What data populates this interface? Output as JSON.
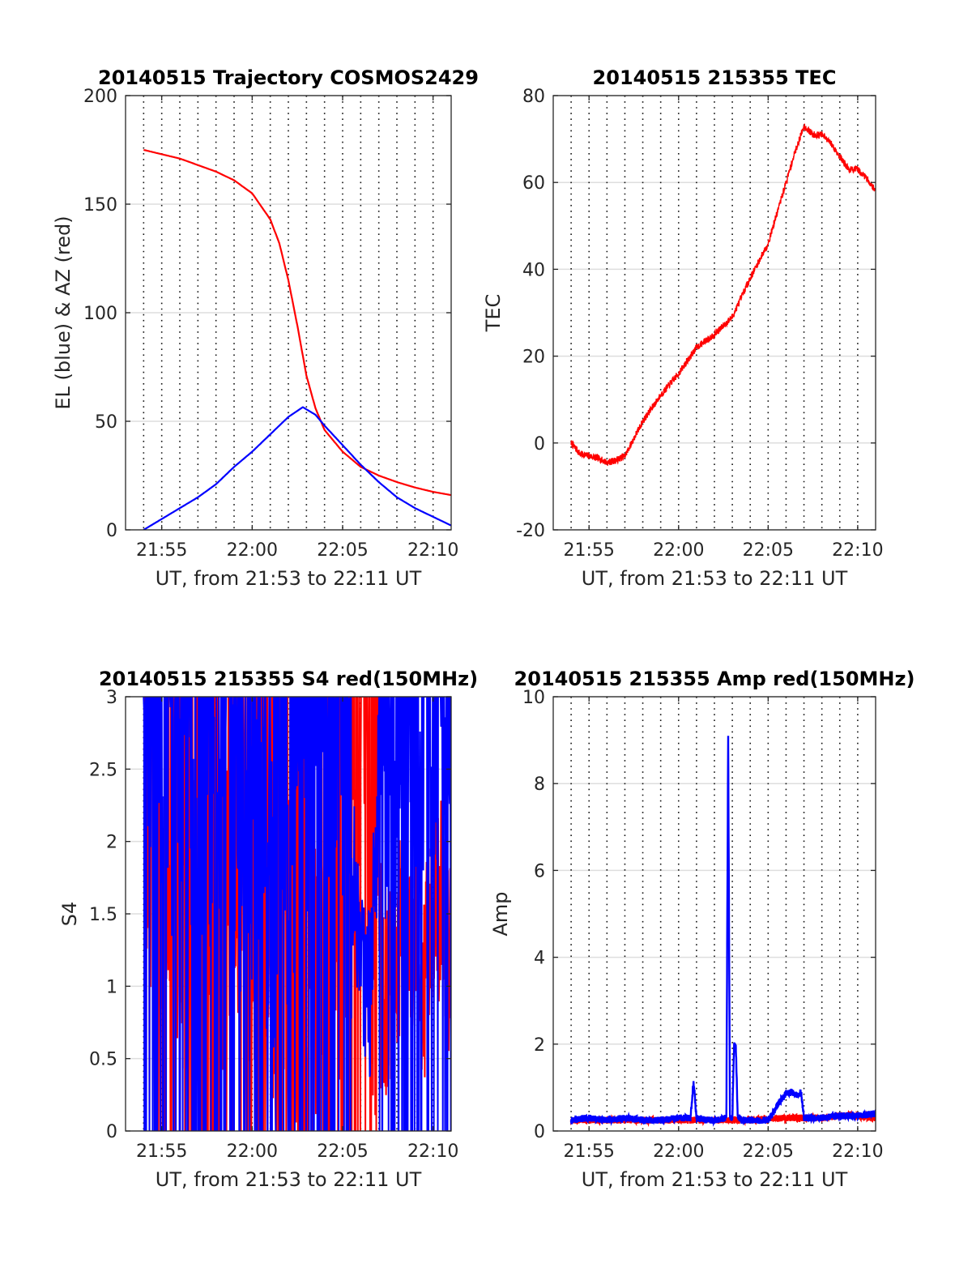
{
  "figure": {
    "background": "#ffffff",
    "series_colors": {
      "red": "#ff0000",
      "blue": "#0000ff"
    }
  },
  "chart_data": [
    {
      "id": "traj",
      "type": "line",
      "title": "20140515 Trajectory COSMOS2429",
      "xlabel": "UT, from 21:53 to 22:11 UT",
      "ylabel": "EL (blue) & AZ (red)",
      "x_unit": "UT time (HH:MM)",
      "xlim": [
        "21:53",
        "22:11"
      ],
      "ylim": [
        0,
        200
      ],
      "x_ticks": [
        "21:55",
        "22:00",
        "22:05",
        "22:10"
      ],
      "y_ticks": [
        "0",
        "50",
        "100",
        "150",
        "200"
      ],
      "y_tick_values": [
        0,
        50,
        100,
        150,
        200
      ],
      "grid": {
        "y_major": true,
        "x_dotted_minutes": true
      },
      "series": [
        {
          "color": "red",
          "x": [
            "21:54",
            "21:55",
            "21:56",
            "21:57",
            "21:58",
            "21:59",
            "22:00",
            "22:01",
            "22:01:30",
            "22:02",
            "22:02:30",
            "22:03",
            "22:03:30",
            "22:04",
            "22:05",
            "22:06",
            "22:07",
            "22:08",
            "22:09",
            "22:10",
            "22:11"
          ],
          "y": [
            175,
            173,
            171,
            168,
            165,
            161,
            155,
            143,
            132,
            115,
            94,
            71,
            56,
            46,
            36,
            29,
            25,
            22,
            19.5,
            17.5,
            16
          ]
        },
        {
          "color": "blue",
          "x": [
            "21:54",
            "21:55",
            "21:56",
            "21:57",
            "21:58",
            "21:59",
            "22:00",
            "22:01",
            "22:02",
            "22:02:48",
            "22:03:30",
            "22:04",
            "22:05",
            "22:06",
            "22:07",
            "22:08",
            "22:09",
            "22:10",
            "22:11"
          ],
          "y": [
            0,
            5,
            10,
            15,
            21,
            29,
            36,
            44,
            52,
            56.5,
            53,
            48,
            39,
            30,
            22,
            15,
            10,
            6,
            2
          ]
        }
      ]
    },
    {
      "id": "tec",
      "type": "line",
      "title": "20140515 215355 TEC",
      "xlabel": "UT, from 21:53 to 22:11 UT",
      "ylabel": "TEC",
      "x_unit": "UT time (HH:MM)",
      "xlim": [
        "21:53",
        "22:11"
      ],
      "ylim": [
        -20,
        80
      ],
      "x_ticks": [
        "21:55",
        "22:00",
        "22:05",
        "22:10"
      ],
      "y_ticks": [
        "-20",
        "0",
        "20",
        "40",
        "60",
        "80"
      ],
      "y_tick_values": [
        -20,
        0,
        20,
        40,
        60,
        80
      ],
      "grid": {
        "y_major": true,
        "x_dotted_minutes": true
      },
      "series": [
        {
          "color": "red",
          "x": [
            "21:54",
            "21:54:30",
            "21:55",
            "21:55:30",
            "21:56",
            "21:56:30",
            "21:57",
            "21:58",
            "21:59",
            "22:00",
            "22:01",
            "22:02",
            "22:03",
            "22:04",
            "22:05",
            "22:05:30",
            "22:06",
            "22:06:30",
            "22:07",
            "22:07:30",
            "22:08",
            "22:08:30",
            "22:09",
            "22:09:30",
            "22:10",
            "22:10:30",
            "22:11"
          ],
          "y": [
            0,
            -2.5,
            -3,
            -3.5,
            -4.5,
            -4,
            -3,
            5,
            11,
            16,
            22,
            25,
            29,
            38,
            46,
            53,
            60,
            67,
            73,
            71,
            71,
            69,
            66,
            63,
            63,
            61,
            58
          ]
        }
      ]
    },
    {
      "id": "s4",
      "type": "line",
      "title": "20140515 215355 S4 red(150MHz)",
      "xlabel": "UT, from 21:53 to 22:11 UT",
      "ylabel": "S4",
      "x_unit": "UT time (HH:MM)",
      "xlim": [
        "21:53",
        "22:11"
      ],
      "ylim": [
        0,
        3
      ],
      "x_ticks": [
        "21:55",
        "22:00",
        "22:05",
        "22:10"
      ],
      "y_ticks": [
        "0",
        "0.5",
        "1",
        "1.5",
        "2",
        "2.5",
        "3"
      ],
      "y_tick_values": [
        0,
        0.5,
        1,
        1.5,
        2,
        2.5,
        3
      ],
      "grid": {
        "y_major": true,
        "x_dotted_minutes": true
      },
      "series": [
        {
          "color": "red",
          "x": [
            "21:54",
            "21:56",
            "21:58",
            "22:00",
            "22:02",
            "22:04",
            "22:05",
            "22:06",
            "22:06:30",
            "22:07",
            "22:07:30",
            "22:08",
            "22:08:30",
            "22:09",
            "22:09:30",
            "22:10",
            "22:10:30",
            "22:11"
          ],
          "y": [
            1.5,
            1.5,
            1.5,
            1.4,
            1.2,
            1.0,
            1.5,
            2.8,
            1.3,
            1.1,
            1.0,
            1.4,
            1.5,
            1.3,
            0.9,
            1.7,
            1.6,
            1.2
          ]
        },
        {
          "color": "blue",
          "x": [
            "21:54",
            "21:55",
            "21:56",
            "21:57",
            "21:58",
            "21:59",
            "22:00",
            "22:01",
            "22:02",
            "22:03",
            "22:04",
            "22:05",
            "22:05:30",
            "22:06",
            "22:06:30",
            "22:07",
            "22:08",
            "22:09",
            "22:10",
            "22:11"
          ],
          "y": [
            3,
            2.5,
            2.3,
            2.0,
            2.2,
            2.0,
            2.1,
            1.6,
            1.9,
            2.6,
            2.9,
            2.7,
            1.8,
            1.3,
            0.9,
            2.4,
            2.6,
            2.8,
            2.9,
            2.5
          ]
        }
      ]
    },
    {
      "id": "amp",
      "type": "line",
      "title": "20140515 215355 Amp red(150MHz)",
      "xlabel": "UT, from 21:53 to 22:11 UT",
      "ylabel": "Amp",
      "x_unit": "UT time (HH:MM)",
      "xlim": [
        "21:53",
        "22:11"
      ],
      "ylim": [
        0,
        10
      ],
      "x_ticks": [
        "21:55",
        "22:00",
        "22:05",
        "22:10"
      ],
      "y_ticks": [
        "0",
        "2",
        "4",
        "6",
        "8",
        "10"
      ],
      "y_tick_values": [
        0,
        2,
        4,
        6,
        8,
        10
      ],
      "grid": {
        "y_major": true,
        "x_dotted_minutes": true
      },
      "series": [
        {
          "color": "red",
          "x": [
            "21:54",
            "21:56",
            "21:58",
            "22:00",
            "22:02",
            "22:04",
            "22:06",
            "22:07",
            "22:08",
            "22:09",
            "22:10",
            "22:11"
          ],
          "y": [
            0.25,
            0.25,
            0.25,
            0.25,
            0.25,
            0.25,
            0.3,
            0.3,
            0.3,
            0.35,
            0.35,
            0.3
          ]
        },
        {
          "color": "blue",
          "x": [
            "21:54",
            "21:55",
            "21:56",
            "21:57",
            "21:58",
            "21:59",
            "22:00",
            "22:00:40",
            "22:00:50",
            "22:01",
            "22:01:30",
            "22:02",
            "22:02:40",
            "22:02:46",
            "22:02:52",
            "22:03",
            "22:03:06",
            "22:03:12",
            "22:03:18",
            "22:03:30",
            "22:04",
            "22:05",
            "22:05:20",
            "22:05:40",
            "22:06",
            "22:06:20",
            "22:06:40",
            "22:06:50",
            "22:07",
            "22:08",
            "22:09",
            "22:10",
            "22:11"
          ],
          "y": [
            0.25,
            0.3,
            0.25,
            0.3,
            0.25,
            0.25,
            0.3,
            0.3,
            1.15,
            0.3,
            0.25,
            0.25,
            0.3,
            9.1,
            0.3,
            0.3,
            2.0,
            1.9,
            0.35,
            0.25,
            0.25,
            0.25,
            0.45,
            0.7,
            0.85,
            0.9,
            0.8,
            0.9,
            0.3,
            0.3,
            0.35,
            0.35,
            0.4
          ]
        }
      ]
    }
  ]
}
